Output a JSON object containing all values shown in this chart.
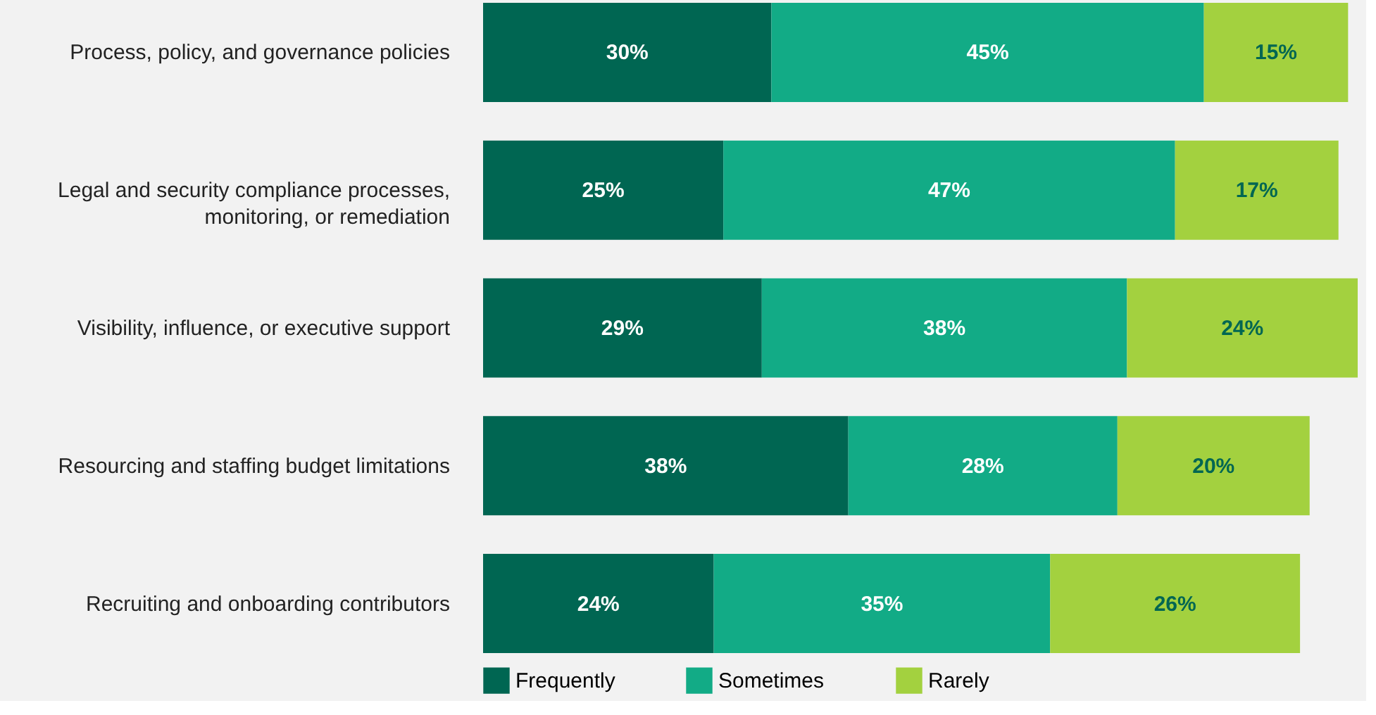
{
  "chart_data": {
    "type": "bar",
    "orientation": "horizontal",
    "stacked": true,
    "legend": "bottom",
    "grid": false,
    "categories": [
      "Process, policy, and governance policies",
      "Legal and security compliance processes,\nmonitoring, or remediation",
      "Visibility, influence, or executive support",
      "Resourcing and staffing budget limitations",
      "Recruiting and onboarding contributors"
    ],
    "series": [
      {
        "name": "Frequently",
        "color": "#006652",
        "values": [
          30,
          25,
          29,
          38,
          24
        ],
        "value_labels": [
          "30%",
          "25%",
          "29%",
          "38%",
          "24%"
        ]
      },
      {
        "name": "Sometimes",
        "color": "#12ab86",
        "values": [
          45,
          47,
          38,
          28,
          35
        ],
        "value_labels": [
          "45%",
          "47%",
          "38%",
          "28%",
          "35%"
        ]
      },
      {
        "name": "Rarely",
        "color": "#a3d13f",
        "values": [
          15,
          17,
          24,
          20,
          26
        ],
        "value_labels": [
          "15%",
          "17%",
          "24%",
          "20%",
          "26%"
        ]
      }
    ]
  }
}
